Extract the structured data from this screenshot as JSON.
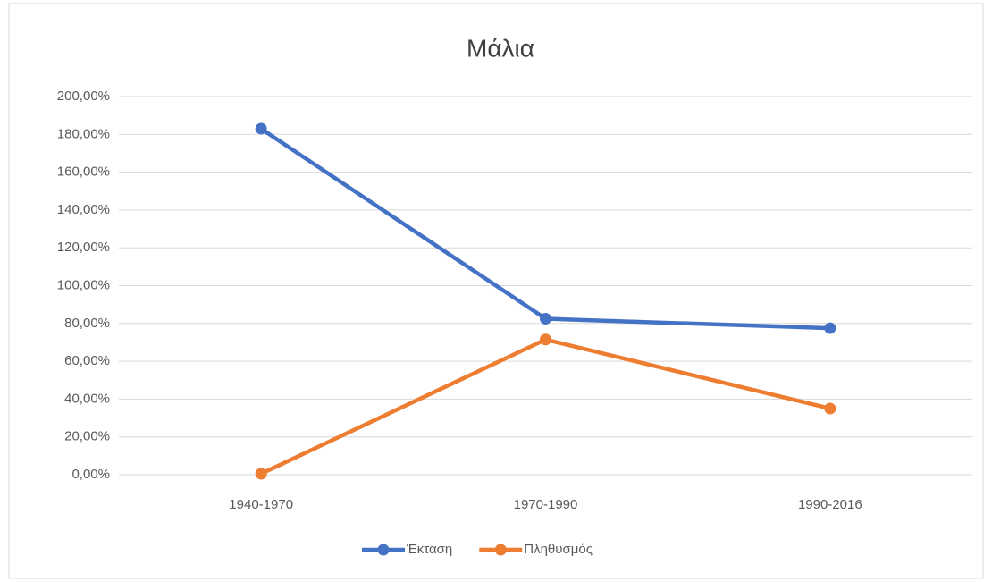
{
  "chart_data": {
    "type": "line",
    "title": "Μάλια",
    "categories": [
      "1940-1970",
      "1970-1990",
      "1990-2016"
    ],
    "series": [
      {
        "name": "Έκταση",
        "color": "#4472c4",
        "values": [
          183,
          82.5,
          77.5
        ]
      },
      {
        "name": "Πληθυσμός",
        "color": "#ed7d31",
        "values": [
          0.5,
          71.5,
          35
        ]
      }
    ],
    "ylim": [
      0,
      200
    ],
    "yticks": [
      {
        "value": 0,
        "label": "0,00%"
      },
      {
        "value": 20,
        "label": "20,00%"
      },
      {
        "value": 40,
        "label": "40,00%"
      },
      {
        "value": 60,
        "label": "60,00%"
      },
      {
        "value": 80,
        "label": "80,00%"
      },
      {
        "value": 100,
        "label": "100,00%"
      },
      {
        "value": 120,
        "label": "120,00%"
      },
      {
        "value": 140,
        "label": "140,00%"
      },
      {
        "value": 160,
        "label": "160,00%"
      },
      {
        "value": 180,
        "label": "180,00%"
      },
      {
        "value": 200,
        "label": "200,00%"
      }
    ],
    "grid": true,
    "legend": "bottom"
  }
}
